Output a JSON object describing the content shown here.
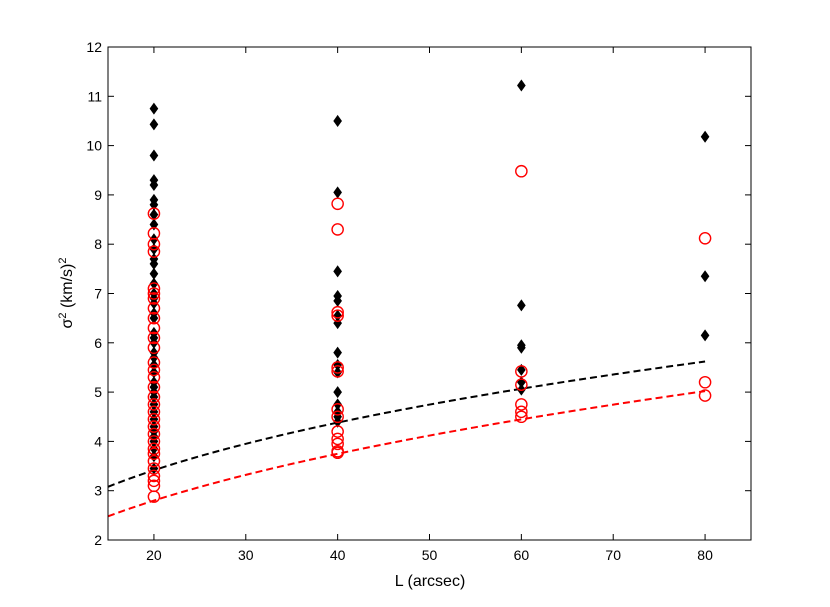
{
  "chart_data": {
    "type": "scatter",
    "xlabel": "L (arcsec)",
    "ylabel_main": "σ",
    "ylabel_sup1": "2",
    "ylabel_units": " (km/s)",
    "ylabel_sup2": "2",
    "xlim": [
      15,
      85
    ],
    "ylim": [
      2,
      12
    ],
    "xticks": [
      20,
      30,
      40,
      50,
      60,
      70,
      80
    ],
    "yticks": [
      2,
      3,
      4,
      5,
      6,
      7,
      8,
      9,
      10,
      11,
      12
    ],
    "grid": false,
    "series": [
      {
        "marker": "filled-diamond",
        "color": "#000000",
        "points": [
          [
            20,
            10.75
          ],
          [
            20,
            10.43
          ],
          [
            20,
            9.8
          ],
          [
            20,
            9.3
          ],
          [
            20,
            9.2
          ],
          [
            20,
            8.9
          ],
          [
            20,
            8.8
          ],
          [
            20,
            8.6
          ],
          [
            20,
            8.4
          ],
          [
            20,
            8.1
          ],
          [
            20,
            7.9
          ],
          [
            20,
            7.7
          ],
          [
            20,
            7.6
          ],
          [
            20,
            7.4
          ],
          [
            20,
            7.2
          ],
          [
            20,
            7.0
          ],
          [
            20,
            6.9
          ],
          [
            20,
            6.8
          ],
          [
            20,
            6.6
          ],
          [
            20,
            6.5
          ],
          [
            20,
            6.2
          ],
          [
            20,
            6.1
          ],
          [
            20,
            6.0
          ],
          [
            20,
            5.8
          ],
          [
            20,
            5.7
          ],
          [
            20,
            5.55
          ],
          [
            20,
            5.4
          ],
          [
            20,
            5.2
          ],
          [
            20,
            5.1
          ],
          [
            20,
            5.0
          ],
          [
            20,
            4.9
          ],
          [
            20,
            4.75
          ],
          [
            20,
            4.6
          ],
          [
            20,
            4.45
          ],
          [
            20,
            4.3
          ],
          [
            20,
            4.2
          ],
          [
            20,
            4.1
          ],
          [
            20,
            4.0
          ],
          [
            20,
            3.85
          ],
          [
            20,
            3.7
          ],
          [
            20,
            3.45
          ],
          [
            40,
            10.5
          ],
          [
            40,
            9.05
          ],
          [
            40,
            7.45
          ],
          [
            40,
            6.95
          ],
          [
            40,
            6.85
          ],
          [
            40,
            6.55
          ],
          [
            40,
            6.4
          ],
          [
            40,
            5.8
          ],
          [
            40,
            5.55
          ],
          [
            40,
            5.4
          ],
          [
            40,
            5.0
          ],
          [
            40,
            4.75
          ],
          [
            40,
            4.6
          ],
          [
            40,
            4.5
          ],
          [
            40,
            4.4
          ],
          [
            60,
            11.22
          ],
          [
            60,
            6.76
          ],
          [
            60,
            5.95
          ],
          [
            60,
            5.9
          ],
          [
            60,
            5.45
          ],
          [
            60,
            5.2
          ],
          [
            60,
            5.05
          ],
          [
            80,
            10.18
          ],
          [
            80,
            7.35
          ],
          [
            80,
            6.15
          ]
        ]
      },
      {
        "marker": "open-circle",
        "color": "#ff0000",
        "points": [
          [
            20,
            8.62
          ],
          [
            20,
            8.22
          ],
          [
            20,
            8.0
          ],
          [
            20,
            7.85
          ],
          [
            20,
            7.1
          ],
          [
            20,
            7.0
          ],
          [
            20,
            6.9
          ],
          [
            20,
            6.7
          ],
          [
            20,
            6.5
          ],
          [
            20,
            6.3
          ],
          [
            20,
            6.1
          ],
          [
            20,
            5.9
          ],
          [
            20,
            5.6
          ],
          [
            20,
            5.45
          ],
          [
            20,
            5.3
          ],
          [
            20,
            5.1
          ],
          [
            20,
            4.9
          ],
          [
            20,
            4.75
          ],
          [
            20,
            4.6
          ],
          [
            20,
            4.45
          ],
          [
            20,
            4.3
          ],
          [
            20,
            4.15
          ],
          [
            20,
            4.0
          ],
          [
            20,
            3.85
          ],
          [
            20,
            3.75
          ],
          [
            20,
            3.6
          ],
          [
            20,
            3.45
          ],
          [
            20,
            3.3
          ],
          [
            20,
            3.2
          ],
          [
            20,
            3.1
          ],
          [
            20,
            2.88
          ],
          [
            40,
            8.82
          ],
          [
            40,
            8.3
          ],
          [
            40,
            6.62
          ],
          [
            40,
            6.55
          ],
          [
            40,
            5.5
          ],
          [
            40,
            5.42
          ],
          [
            40,
            4.65
          ],
          [
            40,
            4.5
          ],
          [
            40,
            4.2
          ],
          [
            40,
            4.05
          ],
          [
            40,
            3.95
          ],
          [
            40,
            3.8
          ],
          [
            40,
            3.77
          ],
          [
            60,
            9.48
          ],
          [
            60,
            5.42
          ],
          [
            60,
            5.15
          ],
          [
            60,
            4.75
          ],
          [
            60,
            4.6
          ],
          [
            60,
            4.5
          ],
          [
            80,
            8.12
          ],
          [
            80,
            5.2
          ],
          [
            80,
            4.93
          ]
        ]
      }
    ],
    "fit_curves": [
      {
        "color": "#000000",
        "style": "dashed",
        "x": [
          15,
          80
        ],
        "y": [
          3.08,
          5.62
        ]
      },
      {
        "color": "#ff0000",
        "style": "dashed",
        "x": [
          15,
          80
        ],
        "y": [
          2.48,
          5.02
        ]
      }
    ]
  }
}
